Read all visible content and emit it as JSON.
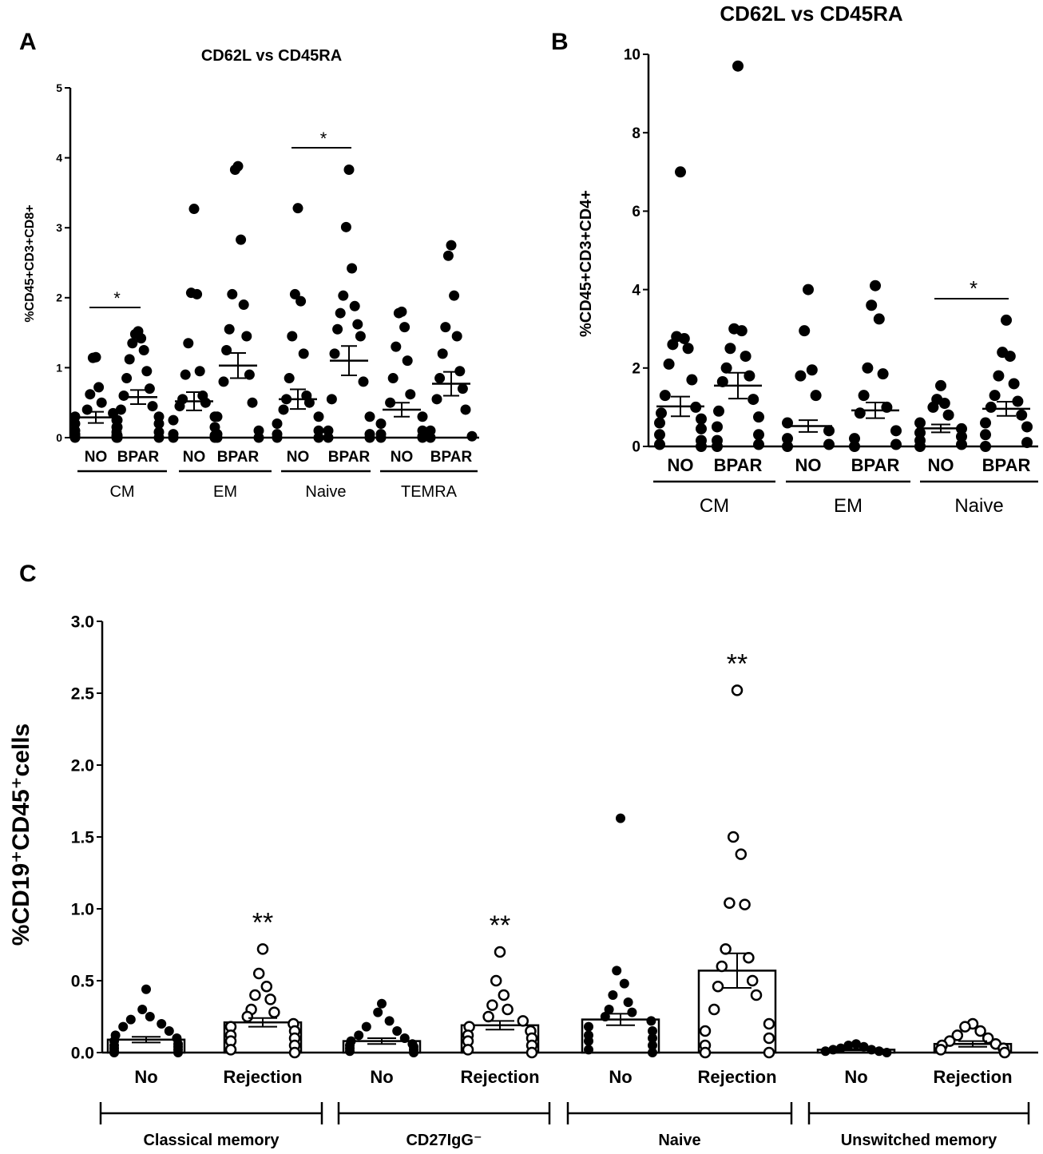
{
  "panels": {
    "a": {
      "letter": "A",
      "title": "CD62L vs CD45RA",
      "ylabel": "%CD45+CD3+CD8+"
    },
    "b": {
      "letter": "B",
      "title": "CD62L vs CD45RA",
      "ylabel": "%CD45+CD3+CD4+"
    },
    "c": {
      "letter": "C",
      "title": "",
      "ylabel": "%CD19⁺CD45⁺cells"
    }
  },
  "chart_data": [
    {
      "panel": "A",
      "type": "scatter",
      "title": "CD62L vs CD45RA",
      "ylabel": "%CD45+CD3+CD8+",
      "ylim": [
        0,
        5
      ],
      "yticks": [
        "0",
        "1",
        "2",
        "3",
        "4",
        "5"
      ],
      "categories": [
        "NO",
        "BPAR",
        "NO",
        "BPAR",
        "NO",
        "BPAR",
        "NO",
        "BPAR"
      ],
      "groups": [
        "CM",
        "EM",
        "Naive",
        "TEMRA"
      ],
      "means": [
        0.29,
        0.58,
        0.52,
        1.03,
        0.55,
        1.1,
        0.4,
        0.77
      ],
      "sem": [
        0.08,
        0.1,
        0.13,
        0.18,
        0.14,
        0.21,
        0.1,
        0.17
      ],
      "points": [
        [
          1.15,
          1.14,
          0.72,
          0.62,
          0.5,
          0.4,
          0.35,
          0.3,
          0.25,
          0.2,
          0.15,
          0.1,
          0.08,
          0.05,
          0.03,
          0.02,
          0.01,
          0.0,
          0.0
        ],
        [
          1.52,
          1.48,
          1.42,
          1.35,
          1.25,
          1.12,
          0.95,
          0.85,
          0.7,
          0.6,
          0.45,
          0.4,
          0.3,
          0.25,
          0.2,
          0.15,
          0.08,
          0.03,
          0.0,
          0.0
        ],
        [
          3.27,
          2.07,
          2.05,
          1.35,
          0.95,
          0.9,
          0.6,
          0.55,
          0.5,
          0.45,
          0.3,
          0.25,
          0.15,
          0.05,
          0.03,
          0.0,
          0.0
        ],
        [
          3.88,
          3.83,
          2.83,
          2.05,
          1.9,
          1.55,
          1.45,
          1.25,
          0.9,
          0.8,
          0.5,
          0.3,
          0.1,
          0.05,
          0.0,
          0.0
        ],
        [
          3.28,
          2.05,
          1.95,
          1.45,
          1.2,
          0.85,
          0.6,
          0.55,
          0.5,
          0.4,
          0.3,
          0.2,
          0.1,
          0.05,
          0.0,
          0.0
        ],
        [
          3.83,
          3.01,
          2.42,
          2.03,
          1.88,
          1.78,
          1.62,
          1.55,
          1.45,
          1.2,
          0.8,
          0.55,
          0.3,
          0.1,
          0.05,
          0.0,
          0.0
        ],
        [
          1.8,
          1.78,
          1.58,
          1.3,
          1.1,
          0.85,
          0.62,
          0.5,
          0.3,
          0.2,
          0.1,
          0.05,
          0.02,
          0.0,
          0.0
        ],
        [
          2.75,
          2.6,
          2.03,
          1.58,
          1.45,
          1.2,
          0.95,
          0.85,
          0.7,
          0.55,
          0.4,
          0.1,
          0.02,
          0.0
        ]
      ],
      "annotations": [
        {
          "text": "*",
          "between": [
            0,
            1
          ]
        },
        {
          "text": "*",
          "between": [
            4,
            5
          ]
        }
      ]
    },
    {
      "panel": "B",
      "type": "scatter",
      "title": "CD62L vs CD45RA",
      "ylabel": "%CD45+CD3+CD4+",
      "ylim": [
        0,
        10
      ],
      "yticks": [
        "0",
        "2",
        "4",
        "6",
        "8",
        "10"
      ],
      "categories": [
        "NO",
        "BPAR",
        "NO",
        "BPAR",
        "NO",
        "BPAR"
      ],
      "groups": [
        "CM",
        "EM",
        "Naive"
      ],
      "means": [
        1.02,
        1.55,
        0.52,
        0.92,
        0.46,
        0.96
      ],
      "sem": [
        0.25,
        0.33,
        0.15,
        0.2,
        0.1,
        0.18
      ],
      "points": [
        [
          7.0,
          2.8,
          2.75,
          2.6,
          2.5,
          2.1,
          1.7,
          1.3,
          1.0,
          0.85,
          0.7,
          0.6,
          0.45,
          0.3,
          0.15,
          0.05,
          0.0
        ],
        [
          9.7,
          3.0,
          2.95,
          2.5,
          2.3,
          2.0,
          1.8,
          1.65,
          1.2,
          0.9,
          0.75,
          0.5,
          0.3,
          0.15,
          0.05,
          0.0
        ],
        [
          4.0,
          2.95,
          1.95,
          1.8,
          1.3,
          0.6,
          0.4,
          0.2,
          0.05,
          0.0
        ],
        [
          4.1,
          3.6,
          3.25,
          2.0,
          1.85,
          1.3,
          1.0,
          0.85,
          0.4,
          0.2,
          0.05,
          0.0
        ],
        [
          1.55,
          1.2,
          1.1,
          1.0,
          0.8,
          0.6,
          0.45,
          0.35,
          0.25,
          0.15,
          0.05,
          0.0
        ],
        [
          3.22,
          2.4,
          2.3,
          1.8,
          1.6,
          1.3,
          1.15,
          1.0,
          0.8,
          0.6,
          0.5,
          0.3,
          0.1,
          0.0
        ]
      ],
      "annotations": [
        {
          "text": "*",
          "between": [
            4,
            5
          ]
        }
      ]
    },
    {
      "panel": "C",
      "type": "bar",
      "ylabel": "%CD19⁺CD45⁺cells",
      "ylim": [
        0,
        3
      ],
      "yticks": [
        "0.0",
        "0.5",
        "1.0",
        "1.5",
        "2.0",
        "2.5",
        "3.0"
      ],
      "categories": [
        "No",
        "Rejection",
        "No",
        "Rejection",
        "No",
        "Rejection",
        "No",
        "Rejection"
      ],
      "groups": [
        "Classical memory",
        "CD27IgG⁻",
        "Naive",
        "Unswitched memory"
      ],
      "values": [
        0.09,
        0.21,
        0.08,
        0.19,
        0.23,
        0.57,
        0.02,
        0.06
      ],
      "sem": [
        0.02,
        0.03,
        0.02,
        0.03,
        0.04,
        0.12,
        0.005,
        0.02
      ],
      "points": [
        [
          0.44,
          0.3,
          0.25,
          0.23,
          0.2,
          0.18,
          0.15,
          0.12,
          0.1,
          0.08,
          0.06,
          0.05,
          0.04,
          0.03,
          0.02,
          0.01,
          0.0,
          0.0
        ],
        [
          0.72,
          0.55,
          0.46,
          0.4,
          0.37,
          0.3,
          0.28,
          0.25,
          0.2,
          0.18,
          0.15,
          0.12,
          0.1,
          0.08,
          0.05,
          0.02,
          0.0
        ],
        [
          0.34,
          0.28,
          0.22,
          0.18,
          0.15,
          0.12,
          0.1,
          0.08,
          0.06,
          0.05,
          0.04,
          0.03,
          0.02,
          0.01,
          0.0
        ],
        [
          0.7,
          0.5,
          0.4,
          0.33,
          0.3,
          0.25,
          0.22,
          0.18,
          0.15,
          0.12,
          0.1,
          0.08,
          0.05,
          0.02,
          0.0
        ],
        [
          1.63,
          0.57,
          0.48,
          0.4,
          0.35,
          0.3,
          0.28,
          0.25,
          0.22,
          0.18,
          0.15,
          0.12,
          0.1,
          0.08,
          0.05,
          0.02,
          0.0
        ],
        [
          2.52,
          1.5,
          1.38,
          1.04,
          1.03,
          0.72,
          0.66,
          0.6,
          0.5,
          0.46,
          0.4,
          0.3,
          0.2,
          0.15,
          0.1,
          0.05,
          0.0,
          0.0
        ],
        [
          0.06,
          0.05,
          0.04,
          0.03,
          0.02,
          0.02,
          0.01,
          0.01,
          0.0
        ],
        [
          0.2,
          0.18,
          0.15,
          0.12,
          0.1,
          0.08,
          0.06,
          0.05,
          0.03,
          0.02,
          0.0
        ]
      ],
      "annotations": [
        {
          "text": "**",
          "over": 1
        },
        {
          "text": "**",
          "over": 3
        },
        {
          "text": "**",
          "over": 5
        }
      ]
    }
  ]
}
